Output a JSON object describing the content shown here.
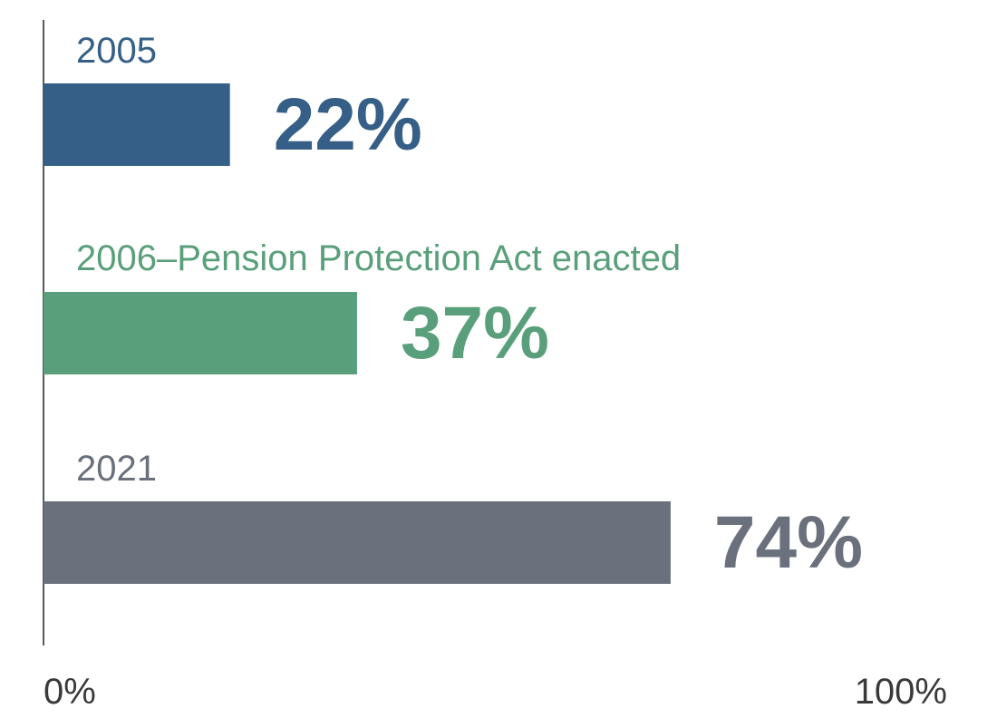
{
  "chart_data": {
    "type": "bar",
    "orientation": "horizontal",
    "categories": [
      "2005",
      "2006–Pension Protection Act enacted",
      "2021"
    ],
    "values": [
      22,
      37,
      74
    ],
    "value_labels": [
      "22%",
      "37%",
      "74%"
    ],
    "colors": [
      "#365f87",
      "#5a9f7b",
      "#6a707c"
    ],
    "xlim": [
      0,
      100
    ],
    "x_ticks": [
      {
        "value": 0,
        "label": "0%"
      },
      {
        "value": 100,
        "label": "100%"
      }
    ],
    "grid": false,
    "legend": "none"
  }
}
